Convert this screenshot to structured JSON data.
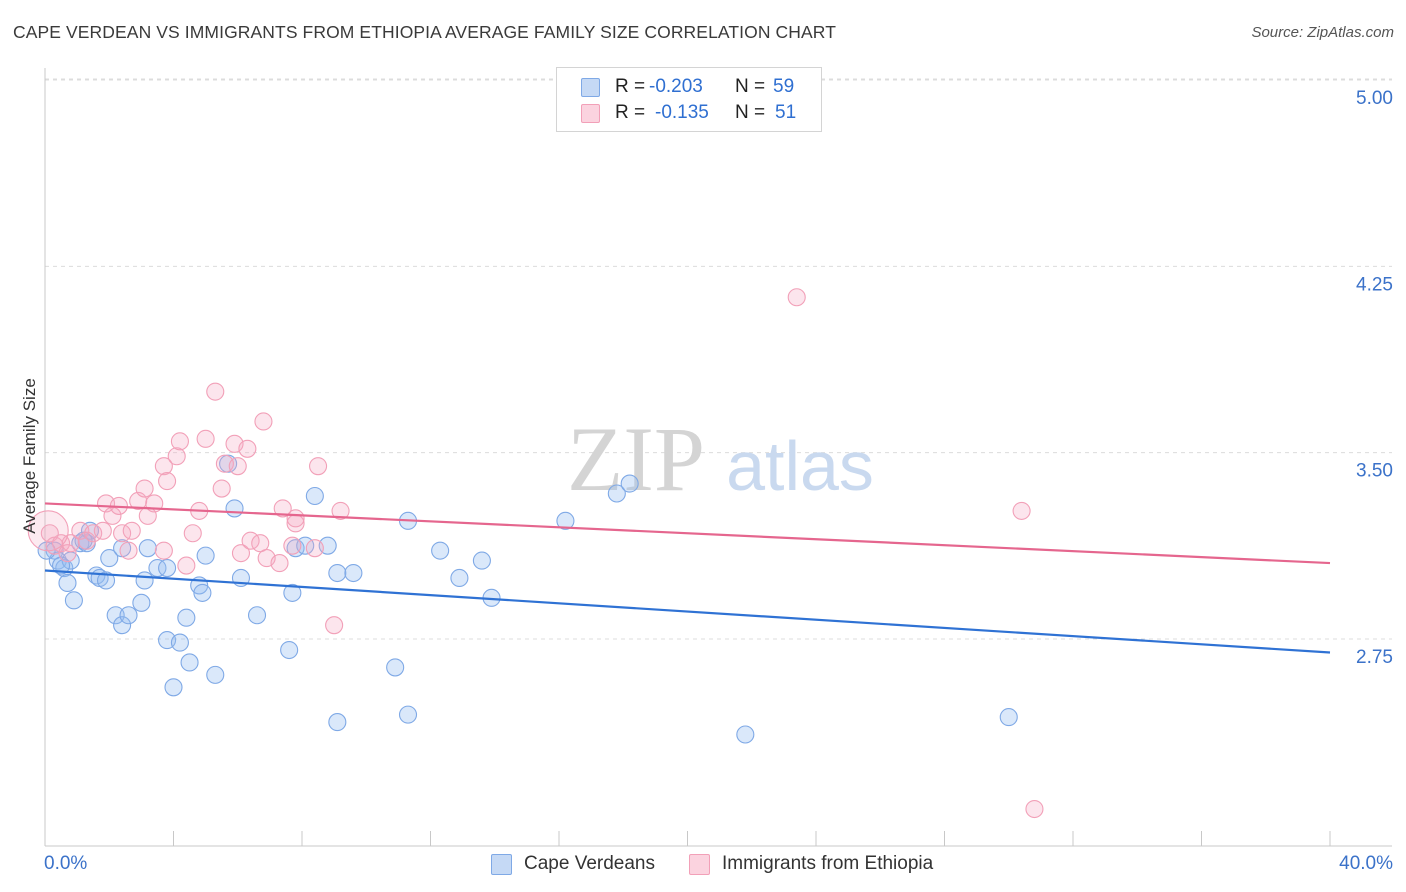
{
  "title": "CAPE VERDEAN VS IMMIGRANTS FROM ETHIOPIA AVERAGE FAMILY SIZE CORRELATION CHART",
  "source": "Source: ZipAtlas.com",
  "watermark": {
    "zip": "ZIP",
    "atlas": "atlas"
  },
  "legend": {
    "r_label": "R =",
    "n_label": "N =",
    "rows": [
      {
        "r": "-0.203",
        "n": "59",
        "color": "#7fa9e6"
      },
      {
        "r": "-0.135",
        "n": "51",
        "color": "#f2a0b8"
      }
    ]
  },
  "bottom_legend": [
    "Cape Verdeans",
    "Immigrants from Ethiopia"
  ],
  "chart_data": {
    "type": "scatter",
    "title": "CAPE VERDEAN VS IMMIGRANTS FROM ETHIOPIA AVERAGE FAMILY SIZE CORRELATION CHART",
    "xlabel": "",
    "ylabel": "Average Family Size",
    "xlim": [
      0,
      40
    ],
    "ylim": [
      2.0,
      5.1
    ],
    "x_tick_labels": [
      "0.0%",
      "40.0%"
    ],
    "y_ticks": [
      2.75,
      3.5,
      4.25,
      5.0
    ],
    "y_tick_labels": [
      "2.75",
      "3.50",
      "4.25",
      "5.00"
    ],
    "series": [
      {
        "name": "Cape Verdeans",
        "color": "#7fa9e6",
        "line_color": "#2f72d4",
        "trend": {
          "x": [
            0,
            40
          ],
          "y": [
            3.09,
            2.76
          ]
        },
        "points": [
          [
            0.3,
            3.17
          ],
          [
            0.4,
            3.13
          ],
          [
            0.6,
            3.1
          ],
          [
            0.7,
            3.04
          ],
          [
            0.8,
            3.13
          ],
          [
            0.9,
            2.97
          ],
          [
            1.1,
            3.2
          ],
          [
            1.3,
            3.2
          ],
          [
            1.4,
            3.25
          ],
          [
            1.6,
            3.07
          ],
          [
            1.7,
            3.06
          ],
          [
            1.9,
            3.05
          ],
          [
            2.0,
            3.14
          ],
          [
            2.2,
            2.91
          ],
          [
            2.4,
            2.87
          ],
          [
            2.4,
            3.18
          ],
          [
            2.6,
            2.91
          ],
          [
            3.0,
            2.96
          ],
          [
            3.1,
            3.05
          ],
          [
            3.2,
            3.18
          ],
          [
            3.5,
            3.1
          ],
          [
            3.8,
            2.81
          ],
          [
            3.8,
            3.1
          ],
          [
            4.0,
            2.62
          ],
          [
            4.2,
            2.8
          ],
          [
            4.4,
            2.9
          ],
          [
            4.5,
            2.72
          ],
          [
            4.8,
            3.03
          ],
          [
            4.9,
            3.0
          ],
          [
            5.0,
            3.15
          ],
          [
            5.3,
            2.67
          ],
          [
            5.7,
            3.52
          ],
          [
            5.9,
            3.34
          ],
          [
            6.1,
            3.06
          ],
          [
            6.6,
            2.91
          ],
          [
            7.6,
            2.77
          ],
          [
            7.7,
            3.0
          ],
          [
            7.8,
            3.18
          ],
          [
            8.1,
            3.19
          ],
          [
            8.4,
            3.39
          ],
          [
            8.8,
            3.19
          ],
          [
            9.1,
            3.08
          ],
          [
            9.1,
            2.48
          ],
          [
            9.6,
            3.08
          ],
          [
            10.9,
            2.7
          ],
          [
            11.3,
            3.29
          ],
          [
            11.3,
            2.51
          ],
          [
            12.3,
            3.17
          ],
          [
            12.9,
            3.06
          ],
          [
            13.6,
            3.13
          ],
          [
            13.9,
            2.98
          ],
          [
            16.2,
            3.29
          ],
          [
            17.8,
            3.4
          ],
          [
            18.2,
            3.44
          ],
          [
            21.8,
            2.43
          ],
          [
            30.0,
            2.5
          ],
          [
            0.05,
            3.17
          ],
          [
            0.5,
            3.11
          ],
          [
            1.2,
            3.21
          ]
        ]
      },
      {
        "name": "Immigrants from Ethiopia",
        "color": "#f2a0b8",
        "line_color": "#e5668e",
        "trend": {
          "x": [
            0,
            40
          ],
          "y": [
            3.36,
            3.12
          ]
        },
        "points": [
          [
            0.15,
            3.24
          ],
          [
            0.3,
            3.19
          ],
          [
            0.5,
            3.2
          ],
          [
            0.7,
            3.16
          ],
          [
            0.8,
            3.2
          ],
          [
            1.1,
            3.25
          ],
          [
            1.3,
            3.21
          ],
          [
            1.5,
            3.24
          ],
          [
            1.8,
            3.25
          ],
          [
            1.9,
            3.36
          ],
          [
            2.1,
            3.31
          ],
          [
            2.3,
            3.35
          ],
          [
            2.4,
            3.24
          ],
          [
            2.6,
            3.17
          ],
          [
            2.7,
            3.25
          ],
          [
            2.9,
            3.37
          ],
          [
            3.1,
            3.42
          ],
          [
            3.2,
            3.31
          ],
          [
            3.4,
            3.36
          ],
          [
            3.7,
            3.51
          ],
          [
            3.7,
            3.17
          ],
          [
            3.8,
            3.45
          ],
          [
            4.1,
            3.55
          ],
          [
            4.2,
            3.61
          ],
          [
            4.4,
            3.11
          ],
          [
            4.6,
            3.24
          ],
          [
            4.8,
            3.33
          ],
          [
            5.0,
            3.62
          ],
          [
            5.3,
            3.81
          ],
          [
            5.5,
            3.42
          ],
          [
            5.6,
            3.52
          ],
          [
            5.9,
            3.6
          ],
          [
            6.0,
            3.51
          ],
          [
            6.1,
            3.16
          ],
          [
            6.3,
            3.58
          ],
          [
            6.4,
            3.21
          ],
          [
            6.7,
            3.2
          ],
          [
            6.8,
            3.69
          ],
          [
            6.9,
            3.14
          ],
          [
            7.3,
            3.12
          ],
          [
            7.4,
            3.34
          ],
          [
            7.7,
            3.19
          ],
          [
            7.8,
            3.28
          ],
          [
            7.8,
            3.3
          ],
          [
            8.4,
            3.18
          ],
          [
            8.5,
            3.51
          ],
          [
            9.0,
            2.87
          ],
          [
            9.2,
            3.33
          ],
          [
            23.4,
            4.19
          ],
          [
            30.4,
            3.33
          ],
          [
            30.8,
            2.13
          ]
        ]
      }
    ]
  }
}
